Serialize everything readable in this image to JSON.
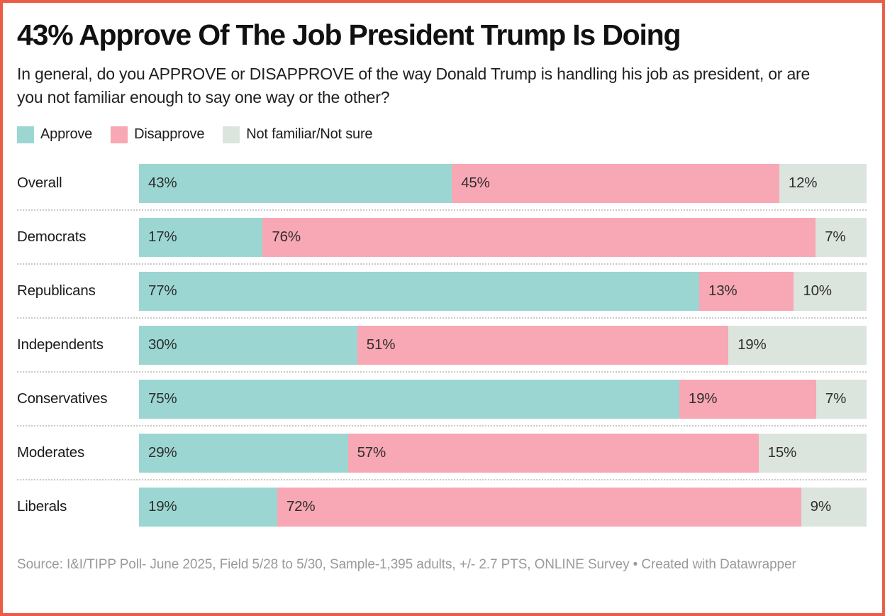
{
  "header": {
    "title": "43% Approve Of The Job President Trump Is Doing",
    "subtitle": "In general, do you APPROVE or DISAPPROVE of the way Donald Trump is handling his job as president, or are you not familiar enough to say one way or the other?"
  },
  "legend": [
    {
      "key": "approve",
      "label": "Approve",
      "color": "#9CD6D2"
    },
    {
      "key": "disapprove",
      "label": "Disapprove",
      "color": "#F8A7B4"
    },
    {
      "key": "not-familiar",
      "label": "Not familiar/Not sure",
      "color": "#DCE4DE"
    }
  ],
  "chart_data": {
    "type": "bar",
    "subtype": "horizontal-stacked-100",
    "title": "43% Approve Of The Job President Trump Is Doing",
    "categories": [
      "Overall",
      "Democrats",
      "Republicans",
      "Independents",
      "Conservatives",
      "Moderates",
      "Liberals"
    ],
    "series": [
      {
        "name": "Approve",
        "color": "#9CD6D2",
        "values": [
          43,
          17,
          77,
          30,
          75,
          29,
          19
        ]
      },
      {
        "name": "Disapprove",
        "color": "#F8A7B4",
        "values": [
          45,
          76,
          13,
          51,
          19,
          57,
          72
        ]
      },
      {
        "name": "Not familiar/Not sure",
        "color": "#DCE4DE",
        "values": [
          12,
          7,
          10,
          19,
          7,
          15,
          9
        ]
      }
    ],
    "value_suffix": "%",
    "xlim": [
      0,
      100
    ],
    "grid": false,
    "legend_position": "top",
    "value_labels": "inside-start"
  },
  "footer": {
    "source": "Source: I&I/TIPP Poll- June 2025, Field 5/28 to 5/30, Sample-1,395 adults, +/- 2.7 PTS, ONLINE Survey • Created with Datawrapper"
  },
  "colors": {
    "frame_border": "#EB5C46",
    "separator": "#C9C9C9",
    "source_text": "#9A9A9A",
    "title_text": "#111111",
    "value_text": "#2E2E2E"
  }
}
